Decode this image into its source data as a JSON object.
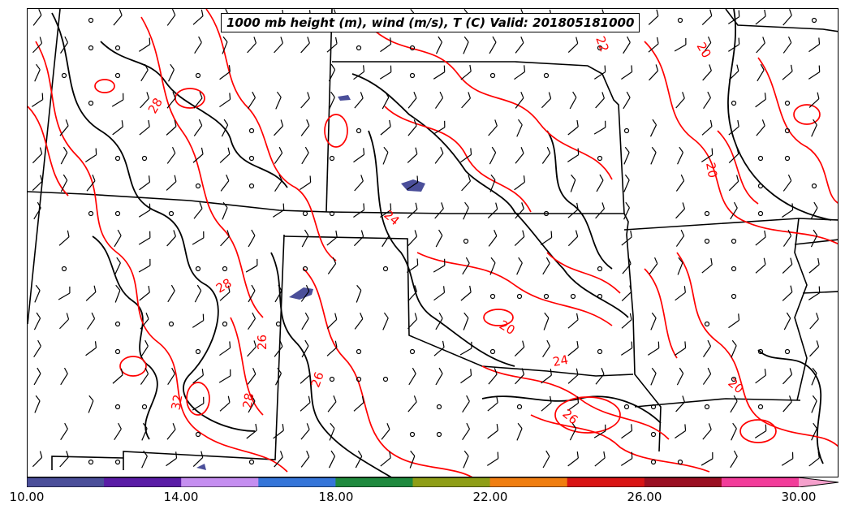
{
  "title": "1000 mb height (m), wind (m/s), T (C) Valid: 201805181000",
  "colorbar": {
    "tick_labels": [
      "10.00",
      "14.00",
      "18.00",
      "22.00",
      "26.00",
      "30.00"
    ],
    "colors": [
      "#4b4f9a",
      "#5a1ca6",
      "#c58ef0",
      "#3575d9",
      "#1f8a3e",
      "#8f9e16",
      "#f07e10",
      "#d91414",
      "#9a0f22",
      "#f23c9a",
      "#f5a0cc"
    ]
  },
  "contour_labels": [
    {
      "text": "28"
    },
    {
      "text": "20"
    },
    {
      "text": "24"
    },
    {
      "text": "20"
    },
    {
      "text": "26"
    },
    {
      "text": "26"
    },
    {
      "text": "32"
    },
    {
      "text": "28"
    },
    {
      "text": "24"
    },
    {
      "text": "20"
    },
    {
      "text": "26"
    },
    {
      "text": "22"
    },
    {
      "text": "20"
    },
    {
      "text": "28"
    }
  ],
  "colors": {
    "temperature_contour": "#ff0000",
    "height_contour": "#000000",
    "shaded_low_value": "#4b4f9a"
  }
}
